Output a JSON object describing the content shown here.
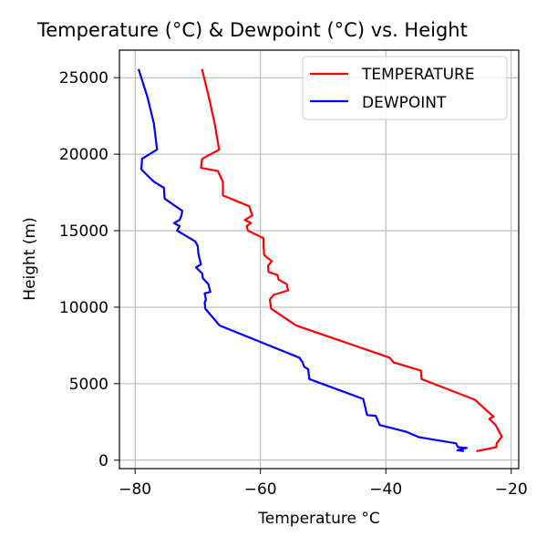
{
  "chart_data": {
    "type": "line",
    "title": "Temperature (°C) & Dewpoint (°C) vs. Height",
    "xlabel": "Temperature °C",
    "ylabel": "Height (m)",
    "xlim": [
      -82.5,
      -18.8
    ],
    "ylim": [
      -550,
      26800
    ],
    "xticks": [
      -80,
      -60,
      -40,
      -20
    ],
    "yticks": [
      0,
      5000,
      10000,
      15000,
      20000,
      25000
    ],
    "grid": true,
    "legend_position": "top-right",
    "series": [
      {
        "name": "TEMPERATURE",
        "color": "#ff0000",
        "points": [
          [
            -25.4,
            600
          ],
          [
            -22.4,
            850
          ],
          [
            -22.3,
            1100
          ],
          [
            -21.5,
            1550
          ],
          [
            -22.5,
            2300
          ],
          [
            -23.5,
            2700
          ],
          [
            -22.8,
            2850
          ],
          [
            -23.1,
            2950
          ],
          [
            -25.8,
            3950
          ],
          [
            -34.3,
            5300
          ],
          [
            -34.4,
            5850
          ],
          [
            -38.8,
            6400
          ],
          [
            -39.4,
            6700
          ],
          [
            -54.3,
            8800
          ],
          [
            -58.3,
            9900
          ],
          [
            -58.5,
            10500
          ],
          [
            -57.9,
            10800
          ],
          [
            -55.6,
            11100
          ],
          [
            -55.8,
            11500
          ],
          [
            -57.1,
            11800
          ],
          [
            -57.3,
            12100
          ],
          [
            -58.7,
            12300
          ],
          [
            -58.8,
            12700
          ],
          [
            -58.2,
            13000
          ],
          [
            -59.4,
            13400
          ],
          [
            -59.5,
            14000
          ],
          [
            -59.5,
            14500
          ],
          [
            -62.0,
            15000
          ],
          [
            -62.2,
            15300
          ],
          [
            -61.5,
            15500
          ],
          [
            -62.5,
            15700
          ],
          [
            -61.3,
            16000
          ],
          [
            -61.8,
            16600
          ],
          [
            -66.0,
            17300
          ],
          [
            -66.0,
            18200
          ],
          [
            -66.8,
            18900
          ],
          [
            -69.5,
            19100
          ],
          [
            -69.3,
            19700
          ],
          [
            -66.6,
            20300
          ],
          [
            -67.3,
            22000
          ],
          [
            -68.1,
            23500
          ],
          [
            -69.3,
            25500
          ]
        ]
      },
      {
        "name": "DEWPOINT",
        "color": "#0000ff",
        "points": [
          [
            -27.7,
            600
          ],
          [
            -28.6,
            650
          ],
          [
            -27.1,
            800
          ],
          [
            -28.5,
            850
          ],
          [
            -28.8,
            1100
          ],
          [
            -34.7,
            1500
          ],
          [
            -36.7,
            1850
          ],
          [
            -41.0,
            2300
          ],
          [
            -41.6,
            2900
          ],
          [
            -43.0,
            2950
          ],
          [
            -43.6,
            4000
          ],
          [
            -52.2,
            5300
          ],
          [
            -52.4,
            5950
          ],
          [
            -53.0,
            6100
          ],
          [
            -53.3,
            6400
          ],
          [
            -53.8,
            6700
          ],
          [
            -66.5,
            8800
          ],
          [
            -68.8,
            9900
          ],
          [
            -68.9,
            10300
          ],
          [
            -68.7,
            10500
          ],
          [
            -68.9,
            10900
          ],
          [
            -68.0,
            11000
          ],
          [
            -68.3,
            11500
          ],
          [
            -69.2,
            11900
          ],
          [
            -69.3,
            12200
          ],
          [
            -70.3,
            12600
          ],
          [
            -69.5,
            12800
          ],
          [
            -69.9,
            13500
          ],
          [
            -70.0,
            14000
          ],
          [
            -70.4,
            14300
          ],
          [
            -73.3,
            15000
          ],
          [
            -72.9,
            15300
          ],
          [
            -73.8,
            15500
          ],
          [
            -72.9,
            15700
          ],
          [
            -72.6,
            16000
          ],
          [
            -72.5,
            16300
          ],
          [
            -75.3,
            17100
          ],
          [
            -75.4,
            17800
          ],
          [
            -77.0,
            18200
          ],
          [
            -79.0,
            19000
          ],
          [
            -78.9,
            19700
          ],
          [
            -76.5,
            20300
          ],
          [
            -77.0,
            22000
          ],
          [
            -78.0,
            23700
          ],
          [
            -79.4,
            25500
          ]
        ]
      }
    ]
  }
}
